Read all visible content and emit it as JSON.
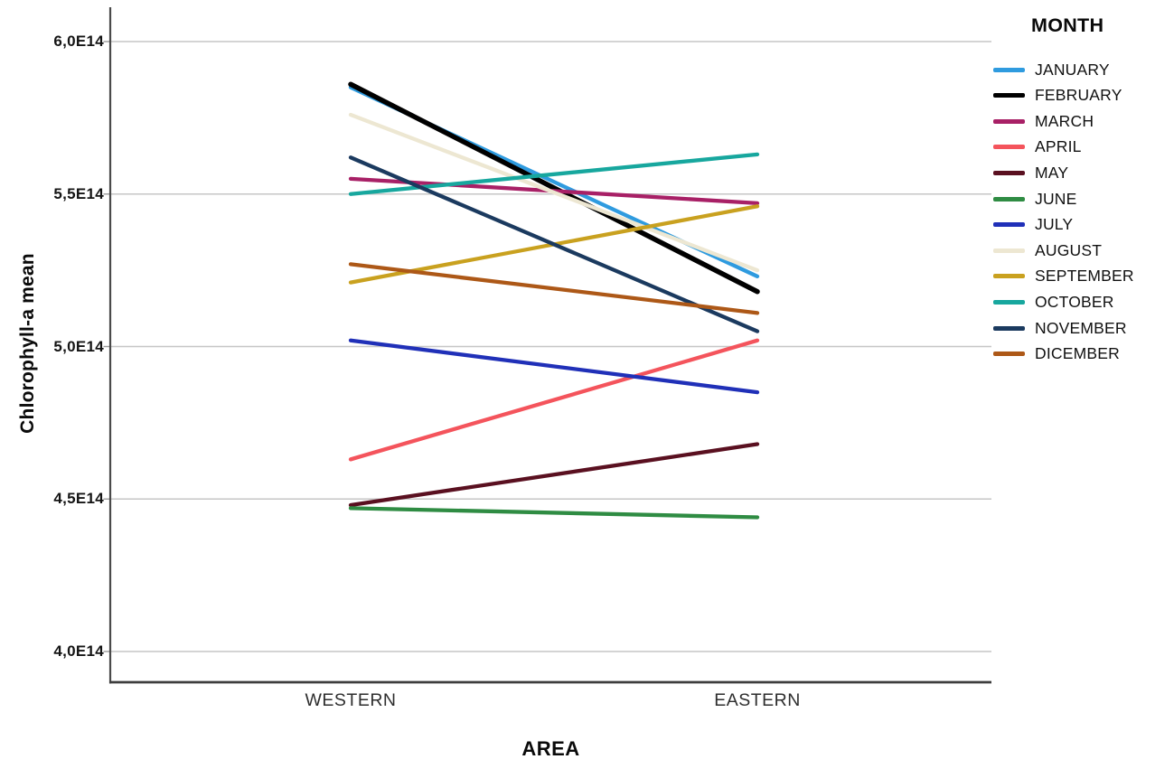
{
  "chart_data": {
    "type": "line",
    "subtype": "profile-plot",
    "title": "",
    "xlabel": "AREA",
    "ylabel": "Chlorophyll-a mean",
    "unit": "E14",
    "categories": [
      "WESTERN",
      "EASTERN"
    ],
    "y_ticks": [
      {
        "label": "6,0E14",
        "value": 6.0
      },
      {
        "label": "5,5E14",
        "value": 5.5
      },
      {
        "label": "5,0E14",
        "value": 5.0
      },
      {
        "label": "4,5E14",
        "value": 4.5
      },
      {
        "label": "4,0E14",
        "value": 4.0
      }
    ],
    "ylim": [
      3.9,
      6.11
    ],
    "grid": true,
    "legend_title": "MONTH",
    "legend_position": "right",
    "series": [
      {
        "name": "JANUARY",
        "color": "#2F9BDF",
        "values": [
          5.85,
          5.23
        ],
        "stroke_width": 4.3
      },
      {
        "name": "FEBRUARY",
        "color": "#000000",
        "values": [
          5.86,
          5.18
        ],
        "stroke_width": 5.5
      },
      {
        "name": "MARCH",
        "color": "#A82066",
        "values": [
          5.55,
          5.47
        ],
        "stroke_width": 4.3
      },
      {
        "name": "APRIL",
        "color": "#F4545C",
        "values": [
          4.63,
          5.02
        ],
        "stroke_width": 4.3
      },
      {
        "name": "MAY",
        "color": "#5A1020",
        "values": [
          4.48,
          4.68
        ],
        "stroke_width": 4.3
      },
      {
        "name": "JUNE",
        "color": "#2F8C43",
        "values": [
          4.47,
          4.44
        ],
        "stroke_width": 4.3
      },
      {
        "name": "JULY",
        "color": "#2030B8",
        "values": [
          5.02,
          4.85
        ],
        "stroke_width": 4.3
      },
      {
        "name": "AUGUST",
        "color": "#EDE7D2",
        "values": [
          5.76,
          5.25
        ],
        "stroke_width": 4.3
      },
      {
        "name": "SEPTEMBER",
        "color": "#C9A11F",
        "values": [
          5.21,
          5.46
        ],
        "stroke_width": 4.3
      },
      {
        "name": "OCTOBER",
        "color": "#17A79E",
        "values": [
          5.5,
          5.63
        ],
        "stroke_width": 4.3
      },
      {
        "name": "NOVEMBER",
        "color": "#1B3A5F",
        "values": [
          5.62,
          5.05
        ],
        "stroke_width": 4.3
      },
      {
        "name": "DICEMBER",
        "color": "#AD5817",
        "values": [
          5.27,
          5.11
        ],
        "stroke_width": 4.3
      }
    ],
    "axis_colors": {
      "axis_line": "#4a4a4a",
      "bottom_axis_line": "#3d3d3d",
      "gridline": "#c6c6c6",
      "tick_mark": "#9a9a9a"
    }
  }
}
